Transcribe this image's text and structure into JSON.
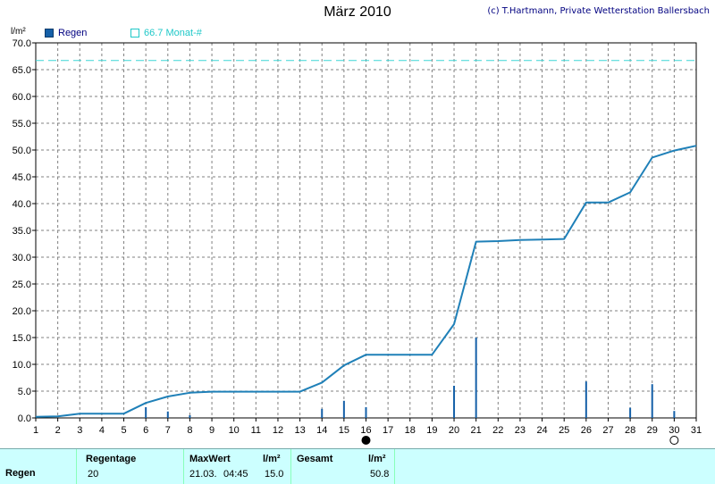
{
  "header": {
    "title": "März 2010",
    "copyright": "(c) T.Hartmann, Private Wetterstation Ballersbach",
    "unit": "l/m²"
  },
  "legend": {
    "rain_label": "Regen",
    "avg_label": "66.7 Monat-#"
  },
  "colors": {
    "line": "#1f80b8",
    "bars": "#1560a8",
    "average": "#3cd6d6",
    "grid": "#808080",
    "footer_bg": "#ccffff"
  },
  "chart_data": {
    "type": "line",
    "title": "März 2010",
    "ylabel": "l/m²",
    "xlim": [
      1,
      31
    ],
    "ylim": [
      0,
      70
    ],
    "x_ticks": [
      1,
      2,
      3,
      4,
      5,
      6,
      7,
      8,
      9,
      10,
      11,
      12,
      13,
      14,
      15,
      16,
      17,
      18,
      19,
      20,
      21,
      22,
      23,
      24,
      25,
      26,
      27,
      28,
      29,
      30,
      31
    ],
    "y_ticks": [
      "0.0",
      "5.0",
      "10.0",
      "15.0",
      "20.0",
      "25.0",
      "30.0",
      "35.0",
      "40.0",
      "45.0",
      "50.0",
      "55.0",
      "60.0",
      "65.0",
      "70.0"
    ],
    "grid": true,
    "series": [
      {
        "name": "Regen",
        "kind": "cumulative",
        "x": [
          1,
          2,
          3,
          4,
          5,
          6,
          7,
          8,
          9,
          10,
          11,
          12,
          13,
          14,
          15,
          16,
          17,
          18,
          19,
          20,
          21,
          22,
          23,
          24,
          25,
          26,
          27,
          28,
          29,
          30,
          31
        ],
        "values": [
          0.2,
          0.3,
          0.8,
          0.8,
          0.8,
          2.8,
          4.0,
          4.7,
          4.9,
          4.9,
          4.9,
          4.9,
          4.9,
          6.6,
          9.8,
          11.8,
          11.8,
          11.8,
          11.8,
          17.5,
          32.9,
          33.0,
          33.2,
          33.3,
          33.4,
          40.2,
          40.2,
          42.1,
          48.6,
          49.9,
          50.8
        ]
      },
      {
        "name": "Regen",
        "kind": "daily",
        "x": [
          6,
          7,
          8,
          14,
          15,
          16,
          20,
          21,
          26,
          28,
          29,
          30
        ],
        "values": [
          2.0,
          1.2,
          0.5,
          1.7,
          3.2,
          2.0,
          6.0,
          15.0,
          6.8,
          1.9,
          6.3,
          1.3
        ]
      },
      {
        "name": "66.7 Monat-#",
        "kind": "average",
        "value": 66.7
      }
    ],
    "markers": [
      {
        "x": 16,
        "type": "full-moon"
      },
      {
        "x": 30,
        "type": "new-moon"
      }
    ]
  },
  "footer": {
    "row_label": "Regen",
    "regentage_label": "Regentage",
    "regentage_value": "20",
    "maxwert_label": "MaxWert",
    "maxwert_unit": "l/m²",
    "maxwert_date": "21.03.",
    "maxwert_time": "04:45",
    "maxwert_value": "15.0",
    "gesamt_label": "Gesamt",
    "gesamt_unit": "l/m²",
    "gesamt_value": "50.8"
  }
}
